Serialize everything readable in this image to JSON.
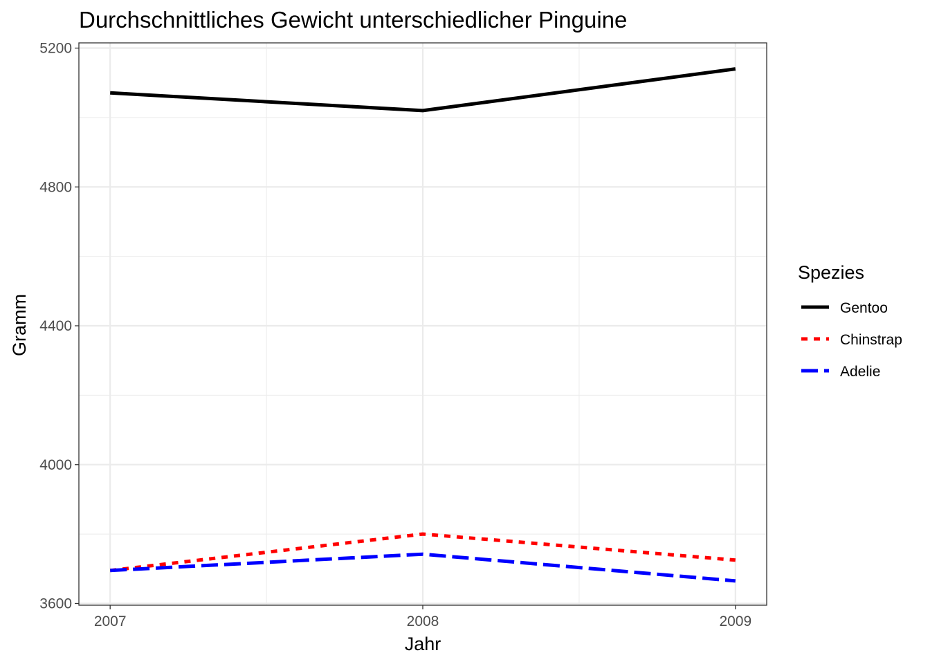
{
  "chart_data": {
    "type": "line",
    "title": "Durchschnittliches Gewicht unterschiedlicher Pinguine",
    "xlabel": "Jahr",
    "ylabel": "Gramm",
    "x": [
      2007,
      2008,
      2009
    ],
    "x_ticks": [
      "2007",
      "2008",
      "2009"
    ],
    "y_ticks": [
      "3600",
      "4000",
      "4400",
      "4800",
      "5200"
    ],
    "xlim": [
      2006.9,
      2009.1
    ],
    "ylim": [
      3595,
      5215
    ],
    "grid": true,
    "legend": {
      "title": "Spezies",
      "placement": "right"
    },
    "series": [
      {
        "name": "Gentoo",
        "values": [
          5071,
          5020,
          5140
        ],
        "color": "#000000",
        "dash": "solid"
      },
      {
        "name": "Chinstrap",
        "values": [
          3695,
          3800,
          3725
        ],
        "color": "#ff0000",
        "dash": "dotted"
      },
      {
        "name": "Adelie",
        "values": [
          3695,
          3742,
          3665
        ],
        "color": "#0000ff",
        "dash": "dashed"
      }
    ]
  }
}
